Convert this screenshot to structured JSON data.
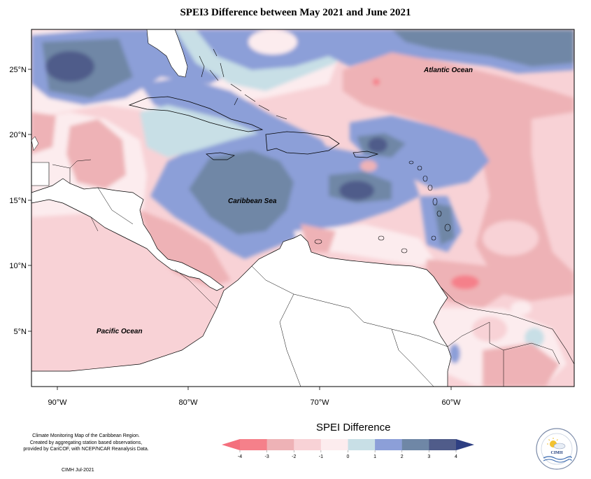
{
  "title": "SPEI3 Difference between May 2021 and June 2021",
  "map": {
    "lat_labels": [
      "25°N",
      "20°N",
      "15°N",
      "10°N",
      "5°N"
    ],
    "lon_labels": [
      "90°W",
      "80°W",
      "70°W",
      "60°W"
    ],
    "ocean_labels": {
      "atlantic": "Atlantic Ocean",
      "caribbean": "Caribbean Sea",
      "pacific": "Pacific Ocean"
    }
  },
  "legend": {
    "title": "SPEI Difference",
    "ticks": [
      "-4",
      "-3",
      "-2",
      "-1",
      "0",
      "1",
      "2",
      "3",
      "4"
    ],
    "colors": [
      "#f5808a",
      "#eeb2b6",
      "#f8d2d6",
      "#fcecee",
      "#c8dfe6",
      "#8c9fd8",
      "#6f87a6",
      "#505c8a"
    ],
    "low_arrow_color": "#f46f7d",
    "high_arrow_color": "#2e3f82"
  },
  "credits": {
    "line1": "Climate Monitoring Map of the Caribbean Region.",
    "line2": "Created by aggregating station based observations,",
    "line3": "provided by CariCOF, with NCEP/NCAR Reanalysis Data.",
    "footer": "CIMH Jul-2021"
  },
  "logo": {
    "text": "CIMH",
    "icon": "sun-cloud-icon"
  }
}
